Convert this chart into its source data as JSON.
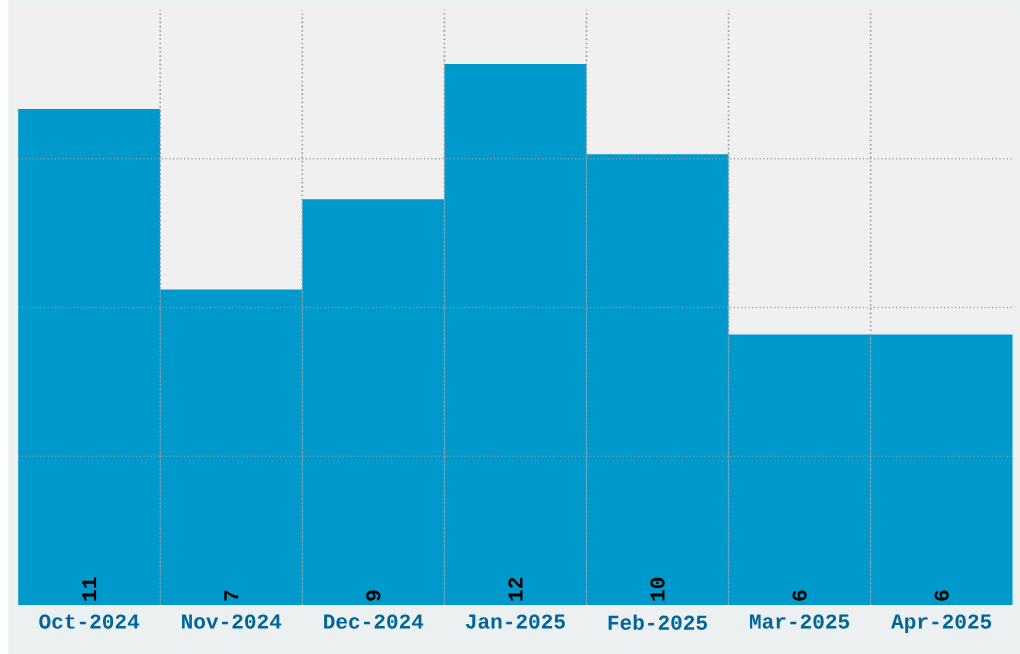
{
  "chart_data": {
    "type": "bar",
    "categories": [
      "Oct-2024",
      "Nov-2024",
      "Dec-2024",
      "Jan-2025",
      "Feb-2025",
      "Mar-2025",
      "Apr-2025"
    ],
    "values": [
      11,
      7,
      9,
      12,
      10,
      6,
      6
    ],
    "color": "#0099cc",
    "ylim": [
      0,
      13.2
    ],
    "yticks": [
      {
        "value": 3.3,
        "label": null
      },
      {
        "value": 6.6,
        "label": null
      },
      {
        "value": 9.9,
        "label": null
      }
    ],
    "tick_labels": "x",
    "grid": true,
    "data_labels": true
  }
}
